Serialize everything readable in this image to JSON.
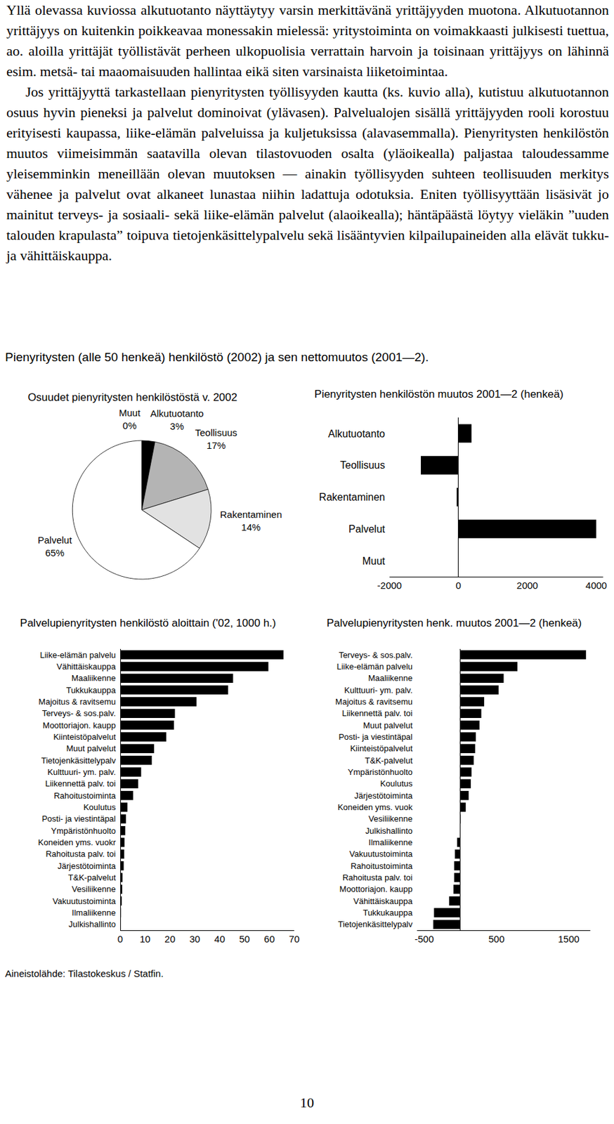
{
  "text": {
    "paragraphs": [
      "Yllä olevassa kuviossa alkutuotanto näyttäytyy varsin merkittävänä yrittäjyyden muotona. Alkutuotannon yrittäjyys on kuitenkin poikkeavaa monessakin mielessä: yritystoiminta on voimakkaasti julkisesti tuettua, ao. aloilla yrittäjät työllistävät perheen ulkopuolisia verrattain harvoin ja toisinaan yrittäjyys on lähinnä esim. metsä- tai maaomaisuuden hallintaa eikä siten varsinaista liiketoimintaa.",
      "Jos yrittäjyyttä tarkastellaan pienyritysten työllisyyden kautta (ks. kuvio alla), kutistuu alkutuotannon osuus hyvin pieneksi ja palvelut dominoivat (ylävasen). Palvelualojen sisällä yrittäjyyden rooli korostuu erityisesti kaupassa, liike-elämän palveluissa ja kuljetuksissa (alavasemmalla). Pienyritysten henkilöstön muutos viimeisimmän saatavilla olevan tilastovuoden osalta (yläoikealla) paljastaa taloudessamme yleisemminkin meneillään olevan muutoksen — ainakin työllisyyden suhteen teollisuuden merkitys vähenee ja palvelut ovat alkaneet lunastaa niihin ladattuja odotuksia. Eniten työllisyyttään lisäsivät jo mainitut terveys- ja sosiaali- sekä liike-elämän palvelut (alaoikealla); häntäpäästä löytyy vieläkin ”uuden talouden krapulasta” toipuva tietojenkäsittelypalvelu sekä lisääntyvien kilpailupaineiden alla elävät tukku- ja vähittäiskauppa."
    ],
    "figure_title": "Pienyritysten (alle 50 henkeä) henkilöstö (2002) ja sen nettomuutos (2001—2).",
    "source": "Aineistolähde: Tilastokeskus / Statfin.",
    "page_number": "10"
  },
  "chart_data": [
    {
      "type": "pie",
      "title": "Osuudet pienyritysten henkilöstöstä v. 2002",
      "categories": [
        "Muut",
        "Alkutuotanto",
        "Teollisuus",
        "Rakentaminen",
        "Palvelut"
      ],
      "values": [
        0,
        3,
        17,
        14,
        65
      ],
      "value_labels": [
        "0%",
        "3%",
        "17%",
        "14%",
        "65%"
      ],
      "colors": [
        "#ffffff",
        "#000000",
        "#b4b4b4",
        "#e2e2e2",
        "#ffffff"
      ]
    },
    {
      "type": "bar",
      "orientation": "horizontal",
      "title": "Pienyritysten henkilöstön muutos 2001—2 (henkeä)",
      "categories": [
        "Alkutuotanto",
        "Teollisuus",
        "Rakentaminen",
        "Palvelut",
        "Muut"
      ],
      "values": [
        380,
        -1090,
        -50,
        4000,
        0
      ],
      "color": "#000000",
      "xlim": [
        -2000,
        4200
      ],
      "xticks": [
        -2000,
        0,
        2000,
        4000
      ],
      "grid": false
    },
    {
      "type": "bar",
      "orientation": "horizontal",
      "title": "Palvelupienyritysten henkilöstö aloittain ('02, 1000 h.)",
      "categories": [
        "Liike-elämän palvelu",
        "Vähittäiskauppa",
        "Maaliikenne",
        "Tukkukauppa",
        "Majoitus & ravitsemu",
        "Terveys- & sos.palv.",
        "Moottoriajon. kaupp",
        "Kiinteistöpalvelut",
        "Muut palvelut",
        "Tietojenkäsittelypalv",
        "Kulttuuri- ym. palv.",
        "Liikennettä palv. toi",
        "Rahoitustoiminta",
        "Koulutus",
        "Posti- ja viestintäpal",
        "Ympäristönhuolto",
        "Koneiden yms. vuokr",
        "Rahoitusta palv. toi",
        "Järjestötoiminta",
        "T&K-palvelut",
        "Vesiliikenne",
        "Vakuutustoiminta",
        "Ilmaliikenne",
        "Julkishallinto"
      ],
      "values": [
        65.7,
        59.6,
        45.4,
        43.4,
        30.7,
        22,
        21.6,
        18.5,
        13.6,
        12.7,
        8.4,
        7.2,
        5.2,
        2.9,
        2.3,
        2.0,
        1.7,
        1.6,
        1.4,
        0.9,
        0.8,
        0.6,
        0.3,
        0.1
      ],
      "color": "#000000",
      "xlim": [
        0,
        70
      ],
      "xticks": [
        0,
        10,
        20,
        30,
        40,
        50,
        60,
        70
      ],
      "grid": false
    },
    {
      "type": "bar",
      "orientation": "horizontal",
      "title": "Palvelupienyritysten henk. muutos 2001—2 (henkeä)",
      "categories": [
        "Terveys- & sos.palv.",
        "Liike-elämän palvelu",
        "Maaliikenne",
        "Kulttuuri- ym. palv.",
        "Majoitus & ravitsemu",
        "Liikennettä palv. toi",
        "Muut palvelut",
        "Posti- ja viestintäpal",
        "Kiinteistöpalvelut",
        "T&K-palvelut",
        "Ympäristönhuolto",
        "Koulutus",
        "Järjestötoiminta",
        "Koneiden yms. vuok",
        "Vesiliikenne",
        "Julkishallinto",
        "Ilmaliikenne",
        "Vakuutustoiminta",
        "Rahoitustoiminta",
        "Rahoitusta palv. toi",
        "Moottoriajon. kaupp",
        "Vähittäiskauppa",
        "Tukkukauppa",
        "Tietojenkäsittelypalv"
      ],
      "values": [
        1740,
        790,
        600,
        530,
        330,
        290,
        265,
        215,
        205,
        185,
        155,
        145,
        115,
        75,
        5,
        0,
        -45,
        -75,
        -85,
        -85,
        -95,
        -155,
        -365,
        -375
      ],
      "color": "#000000",
      "xlim": [
        -600,
        1800
      ],
      "xticks": [
        -500,
        500,
        1500
      ],
      "grid": false
    }
  ]
}
